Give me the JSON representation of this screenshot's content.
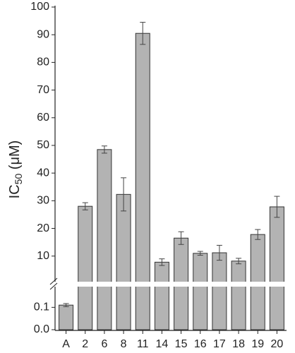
{
  "chart_data": {
    "type": "bar",
    "y_label": "IC",
    "y_label_sub": "50",
    "y_label_suffix": " (μM)",
    "categories": [
      "A",
      "2",
      "6",
      "8",
      "11",
      "14",
      "15",
      "16",
      "17",
      "18",
      "19",
      "20"
    ],
    "values": [
      0.11,
      28,
      48.5,
      32.3,
      90.5,
      7.8,
      16.5,
      11,
      11.2,
      8.2,
      17.8,
      27.8
    ],
    "errors": [
      0.007,
      1.3,
      1.3,
      6,
      4,
      1.2,
      2.3,
      0.7,
      2.7,
      1,
      1.8,
      3.8
    ],
    "color": "#b3b3b3",
    "axis_segments": [
      {
        "ylim": [
          0,
          0.18
        ],
        "yticks": [
          {
            "value": 0,
            "label": "0.0"
          },
          0.1
        ]
      },
      {
        "ylim": [
          1,
          100
        ],
        "yticks": [
          10,
          20,
          30,
          40,
          50,
          60,
          70,
          80,
          90,
          100
        ]
      }
    ],
    "grid": false
  }
}
